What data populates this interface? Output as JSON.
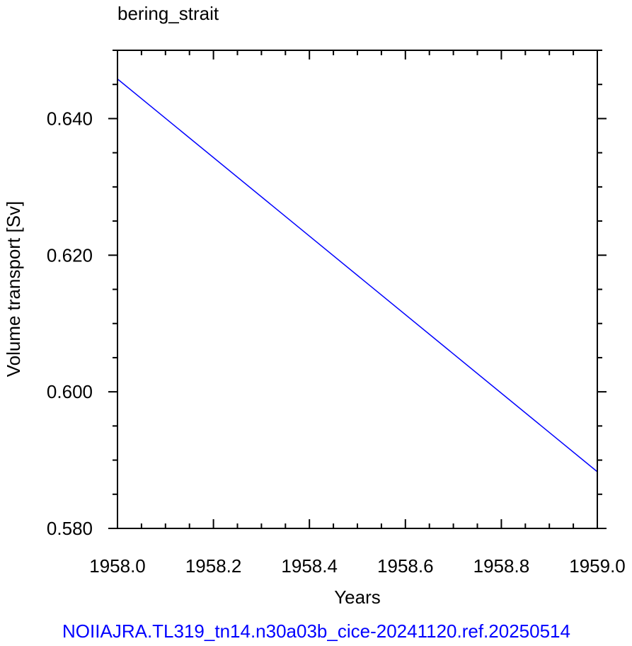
{
  "chart_data": {
    "type": "line",
    "title": "bering_strait",
    "xlabel": "Years",
    "ylabel": "Volume transport [Sv]",
    "xlim": [
      1958.0,
      1959.0
    ],
    "ylim": [
      0.58,
      0.65
    ],
    "x_ticks": [
      "1958.0",
      "1958.2",
      "1958.4",
      "1958.6",
      "1958.8",
      "1959.0"
    ],
    "y_ticks": [
      "0.580",
      "0.600",
      "0.620",
      "0.640"
    ],
    "grid": false,
    "series": [
      {
        "color": "#0000ff",
        "x": [
          1958.0,
          1959.0
        ],
        "y": [
          0.6458,
          0.5883
        ]
      }
    ]
  },
  "footer": {
    "text": "NOIIAJRA.TL319_tn14.n30a03b_cice-20241120.ref.20250514",
    "color": "#0000ff"
  }
}
